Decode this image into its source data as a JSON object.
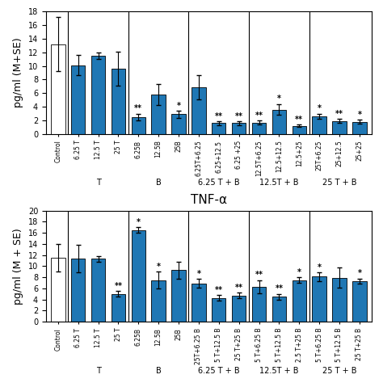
{
  "chart_data": [
    {
      "type": "bar",
      "y_label": "pg/ml (M+SE)",
      "categories": [
        "Control",
        "6.25 T",
        "12.5 T",
        "25 T",
        "6.25B",
        "12.5B",
        "25B",
        "6.25T+6.25",
        "6.25+12.5",
        "6.25 +25",
        "12.5T+6.25",
        "12.5+12.5",
        "12.5+25",
        "25T+6.25",
        "25+12.5",
        "25+25"
      ],
      "values": [
        13.2,
        10.1,
        11.5,
        9.6,
        2.5,
        5.8,
        2.9,
        6.9,
        1.6,
        1.6,
        1.7,
        3.6,
        1.2,
        2.6,
        1.9,
        1.8
      ],
      "errors": [
        4.0,
        1.5,
        0.5,
        2.5,
        0.5,
        1.5,
        0.5,
        1.8,
        0.3,
        0.3,
        0.3,
        0.8,
        0.2,
        0.4,
        0.3,
        0.3
      ],
      "annotations": [
        null,
        null,
        null,
        null,
        "**",
        null,
        "*",
        null,
        "**",
        "**",
        "**",
        "*",
        "**",
        "*",
        "**",
        "*"
      ],
      "colors": [
        "white",
        "#1f77b4",
        "#1f77b4",
        "#1f77b4",
        "#1f77b4",
        "#1f77b4",
        "#1f77b4",
        "#1f77b4",
        "#1f77b4",
        "#1f77b4",
        "#1f77b4",
        "#1f77b4",
        "#1f77b4",
        "#1f77b4",
        "#1f77b4",
        "#1f77b4"
      ],
      "groups": [
        {
          "label": null,
          "size": 1
        },
        {
          "label": "T",
          "size": 3
        },
        {
          "label": "B",
          "size": 3
        },
        {
          "label": "6.25 T + B",
          "size": 3
        },
        {
          "label": "12.5T + B",
          "size": 3
        },
        {
          "label": "25 T + B",
          "size": 3
        }
      ],
      "ylim": [
        0,
        18
      ],
      "yticks": [
        0,
        2,
        4,
        6,
        8,
        10,
        12,
        14,
        16,
        18
      ]
    },
    {
      "type": "bar",
      "title": "TNF-α",
      "y_label": "pg/ml (M + SE)",
      "categories": [
        "Control",
        "6.25 T",
        "12.5 T",
        "25 T",
        "6.25B",
        "12.5B",
        "25B",
        "25T+6.25 B",
        "5 T+12.5 B",
        "25 T+25 B",
        "5 T+6.25 B",
        "5 T+12.5 B",
        "2.5 T+25 B",
        "5 T+6.25 B",
        "5 T+12.5 B",
        "25 T+25 B"
      ],
      "values": [
        11.5,
        11.4,
        11.3,
        5.0,
        16.5,
        7.5,
        9.3,
        6.9,
        4.3,
        4.7,
        6.3,
        4.5,
        7.5,
        8.1,
        7.9,
        7.3
      ],
      "errors": [
        2.5,
        2.5,
        0.5,
        0.5,
        0.5,
        1.5,
        1.5,
        0.8,
        0.5,
        0.5,
        1.2,
        0.5,
        0.5,
        0.8,
        1.8,
        0.5
      ],
      "annotations": [
        null,
        null,
        null,
        "**",
        "*",
        "*",
        null,
        "*",
        "**",
        "**",
        "**",
        "**",
        "*",
        "*",
        null,
        "*"
      ],
      "colors": [
        "white",
        "#1f77b4",
        "#1f77b4",
        "#1f77b4",
        "#1f77b4",
        "#1f77b4",
        "#1f77b4",
        "#1f77b4",
        "#1f77b4",
        "#1f77b4",
        "#1f77b4",
        "#1f77b4",
        "#1f77b4",
        "#1f77b4",
        "#1f77b4",
        "#1f77b4"
      ],
      "groups": [
        {
          "label": null,
          "size": 1
        },
        {
          "label": "T",
          "size": 3
        },
        {
          "label": "B",
          "size": 3
        },
        {
          "label": "6.25 T + B",
          "size": 3
        },
        {
          "label": "12.5T + B",
          "size": 3
        },
        {
          "label": "25 T + B",
          "size": 3
        }
      ],
      "ylim": [
        0,
        20
      ],
      "yticks": [
        0,
        2,
        4,
        6,
        8,
        10,
        12,
        14,
        16,
        18,
        20
      ]
    }
  ]
}
